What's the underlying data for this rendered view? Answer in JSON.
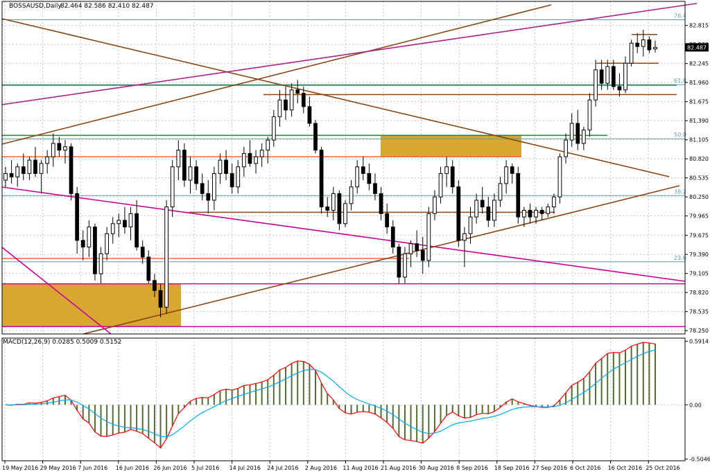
{
  "chart_data": {
    "type": "candlestick",
    "symbol_label": "BOSSAUSD,Daily",
    "ohlc_readout": "82.464 82.586 82.410 82.487",
    "last_price_label": "82.487",
    "ylim": [
      78.2,
      83.05
    ],
    "x_ticks": [
      "19 May 2016",
      "29 May 2016",
      "7 Jun 2016",
      "16 Jun 2016",
      "26 Jun 2016",
      "5 Jul 2016",
      "14 Jul 2016",
      "24 Jul 2016",
      "2 Aug 2016",
      "11 Aug 2016",
      "21 Aug 2016",
      "30 Aug 2016",
      "8 Sep 2016",
      "18 Sep 2016",
      "27 Sep 2016",
      "6 Oct 2016",
      "16 Oct 2016",
      "25 Oct 2016"
    ],
    "y_ticks": [
      "82.815",
      "82.530",
      "82.245",
      "81.960",
      "81.675",
      "81.390",
      "81.105",
      "80.820",
      "80.535",
      "80.250",
      "79.965",
      "79.675",
      "79.390",
      "79.105",
      "78.820",
      "78.535",
      "78.250"
    ],
    "fibonacci_levels": [
      {
        "label": "76.4",
        "value": 82.9
      },
      {
        "label": "61.8",
        "value": 81.93
      },
      {
        "label": "50.0",
        "value": 81.12
      },
      {
        "label": "38.2",
        "value": 80.27
      },
      {
        "label": "23.6",
        "value": 79.28
      }
    ],
    "candles": [
      [
        80.5,
        80.7,
        80.4,
        80.6
      ],
      [
        80.6,
        80.8,
        80.45,
        80.55
      ],
      [
        80.55,
        80.75,
        80.4,
        80.7
      ],
      [
        80.7,
        80.9,
        80.5,
        80.6
      ],
      [
        80.6,
        80.85,
        80.5,
        80.8
      ],
      [
        80.8,
        81.0,
        80.55,
        80.6
      ],
      [
        80.6,
        80.8,
        80.3,
        80.75
      ],
      [
        80.75,
        80.95,
        80.6,
        80.85
      ],
      [
        80.85,
        81.2,
        80.7,
        81.05
      ],
      [
        81.05,
        81.15,
        80.85,
        80.95
      ],
      [
        80.95,
        81.1,
        80.75,
        81.0
      ],
      [
        81.0,
        81.05,
        80.2,
        80.3
      ],
      [
        80.3,
        80.4,
        79.4,
        79.6
      ],
      [
        79.6,
        79.75,
        79.3,
        79.5
      ],
      [
        79.5,
        79.9,
        79.35,
        79.8
      ],
      [
        79.8,
        79.85,
        79.0,
        79.1
      ],
      [
        79.1,
        79.5,
        78.95,
        79.4
      ],
      [
        79.4,
        79.8,
        79.3,
        79.7
      ],
      [
        79.7,
        79.95,
        79.55,
        79.85
      ],
      [
        79.85,
        80.0,
        79.65,
        79.9
      ],
      [
        79.9,
        80.1,
        79.7,
        79.8
      ],
      [
        79.8,
        80.1,
        79.6,
        80.0
      ],
      [
        80.0,
        80.2,
        79.45,
        79.5
      ],
      [
        79.5,
        79.6,
        79.25,
        79.35
      ],
      [
        79.35,
        79.45,
        78.95,
        79.0
      ],
      [
        79.0,
        79.1,
        78.75,
        78.85
      ],
      [
        78.85,
        78.95,
        78.45,
        78.6
      ],
      [
        78.6,
        80.2,
        78.5,
        80.1
      ],
      [
        80.1,
        80.8,
        79.95,
        80.7
      ],
      [
        80.7,
        81.1,
        80.5,
        80.95
      ],
      [
        80.95,
        81.05,
        80.4,
        80.5
      ],
      [
        80.5,
        80.85,
        80.3,
        80.7
      ],
      [
        80.7,
        80.8,
        80.35,
        80.45
      ],
      [
        80.45,
        80.6,
        80.2,
        80.3
      ],
      [
        80.3,
        80.5,
        80.0,
        80.2
      ],
      [
        80.2,
        80.7,
        80.05,
        80.6
      ],
      [
        80.6,
        80.9,
        80.45,
        80.8
      ],
      [
        80.8,
        80.95,
        80.5,
        80.6
      ],
      [
        80.6,
        80.75,
        80.3,
        80.4
      ],
      [
        80.4,
        80.8,
        80.3,
        80.7
      ],
      [
        80.7,
        81.0,
        80.55,
        80.9
      ],
      [
        80.9,
        81.1,
        80.7,
        80.75
      ],
      [
        80.75,
        80.95,
        80.6,
        80.85
      ],
      [
        80.85,
        81.05,
        80.7,
        80.95
      ],
      [
        80.95,
        81.15,
        80.75,
        81.1
      ],
      [
        81.1,
        81.55,
        81.0,
        81.45
      ],
      [
        81.45,
        81.85,
        81.3,
        81.7
      ],
      [
        81.7,
        81.9,
        81.4,
        81.55
      ],
      [
        81.55,
        81.95,
        81.45,
        81.85
      ],
      [
        81.85,
        82.0,
        81.65,
        81.8
      ],
      [
        81.8,
        81.9,
        81.5,
        81.6
      ],
      [
        81.6,
        81.75,
        81.3,
        81.35
      ],
      [
        81.35,
        81.4,
        80.9,
        80.95
      ],
      [
        80.95,
        81.0,
        80.0,
        80.1
      ],
      [
        80.1,
        80.25,
        79.95,
        80.05
      ],
      [
        80.05,
        80.4,
        79.9,
        80.3
      ],
      [
        80.3,
        80.35,
        79.75,
        79.85
      ],
      [
        79.85,
        80.2,
        79.8,
        80.15
      ],
      [
        80.15,
        80.5,
        80.05,
        80.4
      ],
      [
        80.4,
        80.8,
        80.3,
        80.7
      ],
      [
        80.7,
        80.85,
        80.5,
        80.6
      ],
      [
        80.6,
        80.75,
        80.35,
        80.45
      ],
      [
        80.45,
        80.6,
        80.2,
        80.3
      ],
      [
        80.3,
        80.4,
        79.9,
        80.0
      ],
      [
        80.0,
        80.15,
        79.7,
        79.8
      ],
      [
        79.8,
        79.9,
        79.4,
        79.5
      ],
      [
        79.5,
        79.55,
        78.95,
        79.05
      ],
      [
        79.05,
        79.5,
        78.95,
        79.4
      ],
      [
        79.4,
        79.6,
        79.2,
        79.55
      ],
      [
        79.55,
        79.75,
        79.35,
        79.45
      ],
      [
        79.45,
        79.65,
        79.1,
        79.3
      ],
      [
        79.3,
        80.1,
        79.2,
        80.0
      ],
      [
        80.0,
        80.35,
        79.9,
        80.25
      ],
      [
        80.25,
        80.7,
        80.15,
        80.6
      ],
      [
        80.6,
        80.85,
        80.4,
        80.7
      ],
      [
        80.7,
        80.8,
        80.3,
        80.4
      ],
      [
        80.4,
        80.5,
        79.5,
        79.6
      ],
      [
        79.6,
        79.8,
        79.2,
        79.7
      ],
      [
        79.7,
        80.1,
        79.55,
        79.95
      ],
      [
        79.95,
        80.3,
        79.85,
        80.2
      ],
      [
        80.2,
        80.4,
        80.0,
        80.1
      ],
      [
        80.1,
        80.25,
        79.8,
        79.9
      ],
      [
        79.9,
        80.3,
        79.8,
        80.2
      ],
      [
        80.2,
        80.55,
        80.1,
        80.45
      ],
      [
        80.45,
        80.8,
        80.3,
        80.7
      ],
      [
        80.7,
        80.75,
        80.45,
        80.6
      ],
      [
        80.6,
        80.7,
        79.85,
        79.95
      ],
      [
        79.95,
        80.1,
        79.8,
        80.05
      ],
      [
        80.05,
        80.15,
        79.85,
        79.95
      ],
      [
        79.95,
        80.1,
        79.85,
        80.05
      ],
      [
        80.05,
        80.1,
        79.9,
        80.0
      ],
      [
        80.0,
        80.15,
        79.95,
        80.1
      ],
      [
        80.1,
        80.3,
        80.0,
        80.25
      ],
      [
        80.25,
        80.9,
        80.15,
        80.85
      ],
      [
        80.85,
        81.2,
        80.75,
        81.1
      ],
      [
        81.1,
        81.5,
        81.0,
        81.35
      ],
      [
        81.35,
        81.55,
        80.95,
        81.05
      ],
      [
        81.05,
        81.3,
        80.95,
        81.25
      ],
      [
        81.25,
        81.8,
        81.15,
        81.7
      ],
      [
        81.7,
        82.3,
        81.6,
        82.15
      ],
      [
        82.15,
        82.3,
        81.85,
        81.95
      ],
      [
        81.95,
        82.3,
        81.85,
        82.2
      ],
      [
        82.2,
        82.3,
        81.85,
        81.9
      ],
      [
        81.9,
        82.1,
        81.75,
        81.85
      ],
      [
        81.85,
        82.35,
        81.8,
        82.25
      ],
      [
        82.25,
        82.6,
        82.2,
        82.55
      ],
      [
        82.55,
        82.7,
        82.4,
        82.5
      ],
      [
        82.5,
        82.75,
        82.35,
        82.6
      ],
      [
        82.6,
        82.65,
        82.4,
        82.45
      ],
      [
        82.464,
        82.586,
        82.41,
        82.487
      ]
    ],
    "horizontal_levels": [
      {
        "color": "#2e8b57",
        "value": 81.92
      },
      {
        "color": "#8b4513",
        "value": 81.78
      },
      {
        "color": "#2e7d32",
        "value": 81.17
      },
      {
        "color": "#ff6633",
        "value": 80.85
      },
      {
        "color": "#8b4513",
        "value": 80.02
      },
      {
        "color": "#ff6633",
        "value": 79.33
      },
      {
        "color": "#cc0099",
        "value": 78.95
      },
      {
        "color": "#cc0099",
        "value": 78.31
      }
    ],
    "zones": [
      {
        "label": "",
        "value_top": 81.17,
        "value_bottom": 80.85,
        "color": "#d4a020"
      },
      {
        "label": "",
        "value_top": 78.95,
        "value_bottom": 78.31,
        "color": "#d4a020"
      }
    ],
    "macd": {
      "label": "MACD(12,26,9) 0.0285 0.5009 0.5152",
      "y_ticks": [
        "0.5914",
        "0.00",
        "-0.5046"
      ],
      "ylim": [
        -0.52,
        0.62
      ]
    },
    "colors": {
      "up": "#ffffff",
      "down": "#000000",
      "signal": "#ff0000",
      "main": "#00aaff",
      "histogram": "#556b2f",
      "grid": "#c0c0c0"
    }
  }
}
